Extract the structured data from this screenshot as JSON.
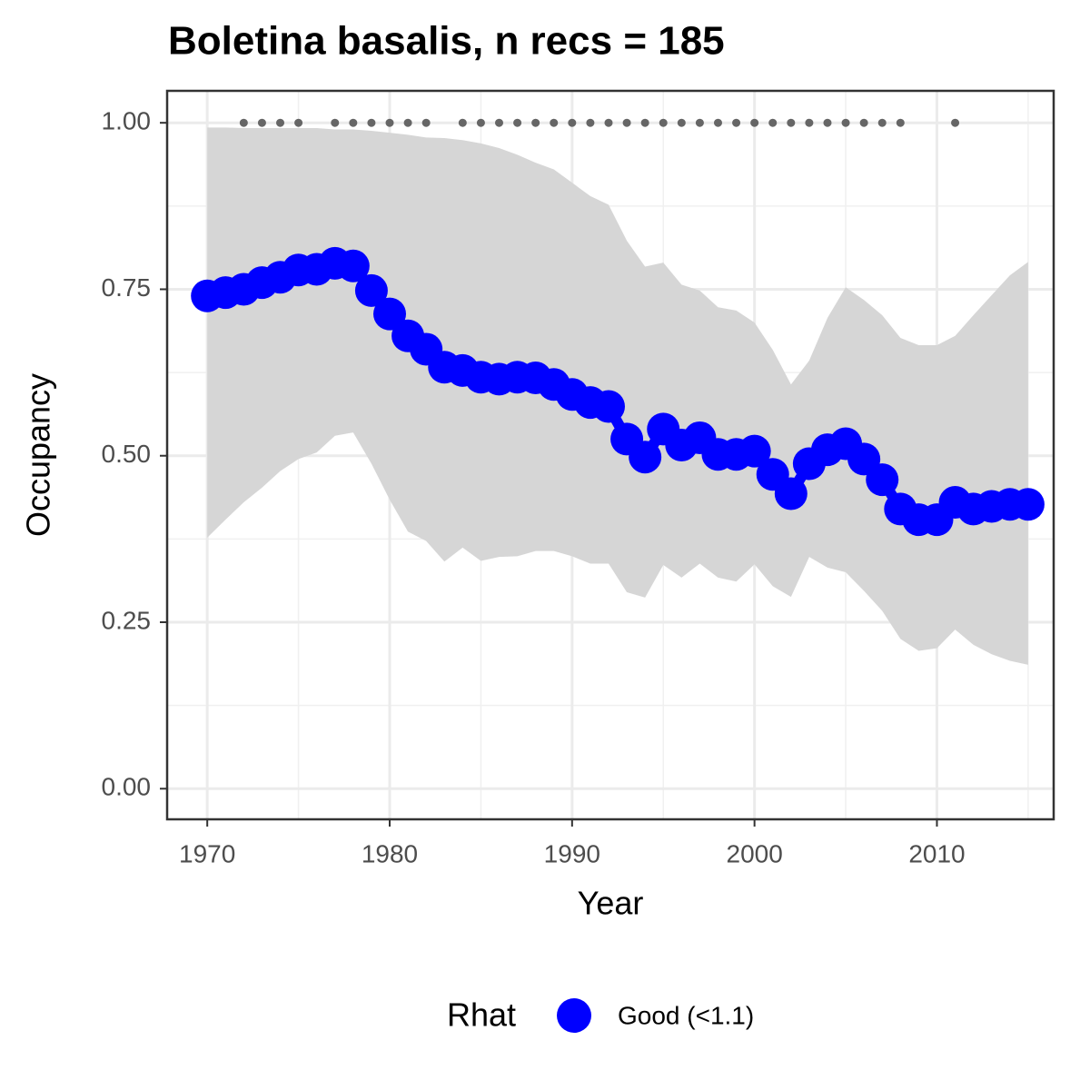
{
  "chart_data": {
    "type": "line",
    "title": "Boletina basalis, n recs = 185",
    "x_label": "Year",
    "y_label": "Occupancy",
    "x": [
      1970,
      1971,
      1972,
      1973,
      1974,
      1975,
      1976,
      1977,
      1978,
      1979,
      1980,
      1981,
      1982,
      1983,
      1984,
      1985,
      1986,
      1987,
      1988,
      1989,
      1990,
      1991,
      1992,
      1993,
      1994,
      1995,
      1996,
      1997,
      1998,
      1999,
      2000,
      2001,
      2002,
      2003,
      2004,
      2005,
      2006,
      2007,
      2008,
      2009,
      2010,
      2011,
      2012,
      2013,
      2014,
      2015
    ],
    "series": [
      {
        "name": "Good (<1.1)",
        "color": "#0000ff",
        "values": [
          0.74,
          0.745,
          0.75,
          0.76,
          0.768,
          0.779,
          0.78,
          0.789,
          0.785,
          0.748,
          0.713,
          0.68,
          0.66,
          0.633,
          0.628,
          0.618,
          0.615,
          0.618,
          0.617,
          0.607,
          0.592,
          0.58,
          0.574,
          0.525,
          0.498,
          0.54,
          0.516,
          0.527,
          0.502,
          0.502,
          0.507,
          0.472,
          0.443,
          0.488,
          0.509,
          0.518,
          0.495,
          0.464,
          0.42,
          0.404,
          0.404,
          0.43,
          0.42,
          0.424,
          0.427,
          0.427
        ]
      }
    ],
    "interval": {
      "color": "#d6d6d6",
      "lower": [
        0.377,
        0.404,
        0.43,
        0.452,
        0.477,
        0.495,
        0.505,
        0.53,
        0.535,
        0.488,
        0.434,
        0.386,
        0.372,
        0.341,
        0.362,
        0.342,
        0.348,
        0.349,
        0.357,
        0.357,
        0.349,
        0.338,
        0.338,
        0.295,
        0.287,
        0.336,
        0.317,
        0.338,
        0.317,
        0.311,
        0.337,
        0.304,
        0.288,
        0.348,
        0.332,
        0.325,
        0.297,
        0.267,
        0.225,
        0.207,
        0.211,
        0.239,
        0.216,
        0.202,
        0.192,
        0.186
      ],
      "upper": [
        0.993,
        0.993,
        0.992,
        0.992,
        0.992,
        0.992,
        0.992,
        0.99,
        0.99,
        0.988,
        0.985,
        0.982,
        0.978,
        0.977,
        0.974,
        0.969,
        0.962,
        0.952,
        0.94,
        0.93,
        0.91,
        0.89,
        0.877,
        0.823,
        0.784,
        0.79,
        0.757,
        0.748,
        0.723,
        0.718,
        0.7,
        0.659,
        0.607,
        0.643,
        0.707,
        0.753,
        0.734,
        0.711,
        0.677,
        0.666,
        0.666,
        0.68,
        0.711,
        0.741,
        0.771,
        0.791
      ]
    },
    "records": {
      "color": "#666666",
      "x": [
        1972,
        1973,
        1974,
        1975,
        1977,
        1978,
        1979,
        1980,
        1981,
        1982,
        1984,
        1985,
        1986,
        1987,
        1988,
        1989,
        1990,
        1991,
        1992,
        1993,
        1994,
        1995,
        1996,
        1997,
        1998,
        1999,
        2000,
        2001,
        2002,
        2003,
        2004,
        2005,
        2006,
        2007,
        2008,
        2011
      ],
      "y": [
        1,
        1,
        1,
        1,
        1,
        1,
        1,
        1,
        1,
        1,
        1,
        1,
        1,
        1,
        1,
        1,
        1,
        1,
        1,
        1,
        1,
        1,
        1,
        1,
        1,
        1,
        1,
        1,
        1,
        1,
        1,
        1,
        1,
        1,
        1,
        1
      ]
    },
    "xlim": [
      1967.8,
      2016.4
    ],
    "ylim": [
      -0.046,
      1.048
    ],
    "xticks": [
      1970,
      1980,
      1990,
      2000,
      2010
    ],
    "x_minor_ticks": [
      1975,
      1985,
      1995,
      2005,
      2015
    ],
    "yticks": [
      {
        "value": 0,
        "label": "0.00"
      },
      0.25,
      {
        "value": 0.5,
        "label": "0.50"
      },
      0.75,
      {
        "value": 1,
        "label": "1.00"
      }
    ],
    "y_minor_ticks": [
      0.125,
      0.375,
      0.625,
      0.875
    ],
    "grid": true,
    "legend_title": "Rhat",
    "legend_position": "bottom"
  }
}
